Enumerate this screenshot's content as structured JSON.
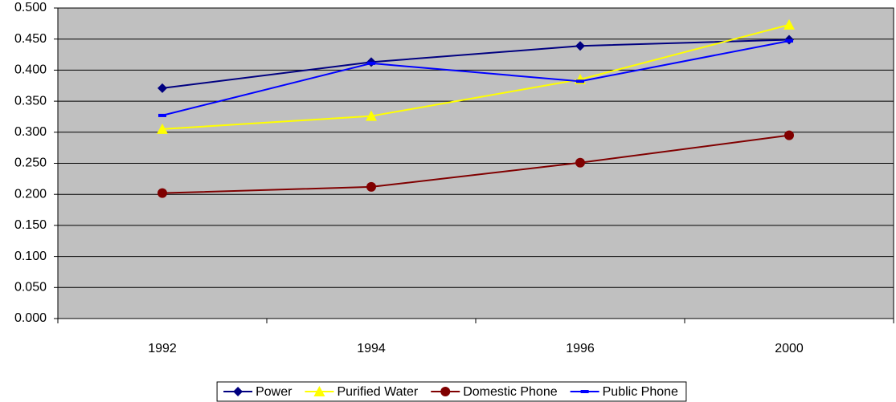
{
  "chart_data": {
    "type": "line",
    "categories": [
      "1992",
      "1994",
      "1996",
      "2000"
    ],
    "series": [
      {
        "name": "Power",
        "color": "#000080",
        "marker": "diamond",
        "values": [
          0.371,
          0.413,
          0.439,
          0.449
        ]
      },
      {
        "name": "Purified Water",
        "color": "#ffff00",
        "marker": "triangle",
        "values": [
          0.305,
          0.326,
          0.385,
          0.473
        ]
      },
      {
        "name": "Domestic Phone",
        "color": "#800000",
        "marker": "circle",
        "values": [
          0.202,
          0.212,
          0.251,
          0.295
        ]
      },
      {
        "name": "Public Phone",
        "color": "#0000ff",
        "marker": "dash",
        "values": [
          0.327,
          0.411,
          0.382,
          0.447
        ]
      }
    ],
    "ylim": [
      0,
      0.5
    ],
    "yticks": [
      {
        "value": 0,
        "label": "0.000"
      },
      {
        "value": 0.05,
        "label": "0.050"
      },
      {
        "value": 0.1,
        "label": "0.100"
      },
      {
        "value": 0.15,
        "label": "0.150"
      },
      {
        "value": 0.2,
        "label": "0.200"
      },
      {
        "value": 0.25,
        "label": "0.250"
      },
      {
        "value": 0.3,
        "label": "0.300"
      },
      {
        "value": 0.35,
        "label": "0.350"
      },
      {
        "value": 0.4,
        "label": "0.400"
      },
      {
        "value": 0.45,
        "label": "0.450"
      },
      {
        "value": 0.5,
        "label": "0.500"
      }
    ],
    "grid": true,
    "plot_background": "#c0c0c0",
    "legend": "bottom"
  }
}
